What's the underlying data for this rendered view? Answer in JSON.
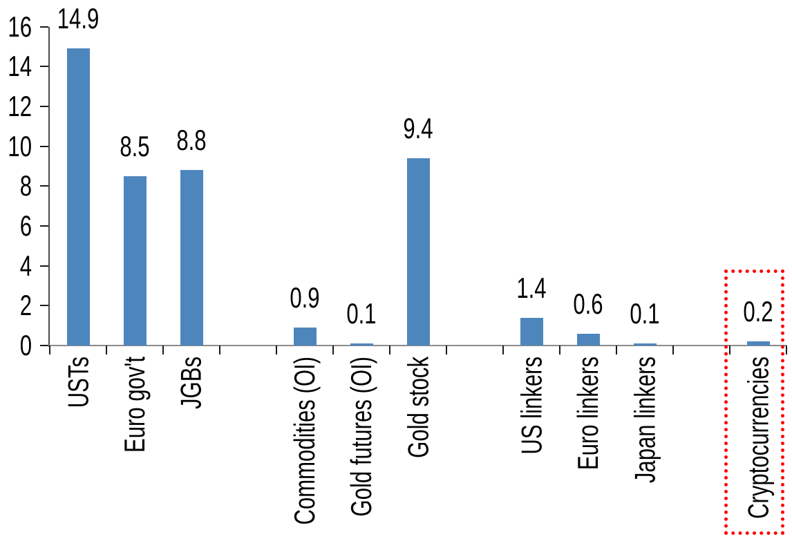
{
  "chart_data": {
    "type": "bar",
    "title": "",
    "xlabel": "",
    "ylabel": "",
    "ylim": [
      0,
      16
    ],
    "y_ticks": [
      0,
      2,
      4,
      6,
      8,
      10,
      12,
      14,
      16
    ],
    "grid": false,
    "legend": false,
    "bar_color": "#4D86BD",
    "categories": [
      "USTs",
      "Euro gov't",
      "JGBs",
      "Commodities (OI)",
      "Gold futures (OI)",
      "Gold stock",
      "US linkers",
      "Euro linkers",
      "Japan linkers",
      "Cryptocurrencies"
    ],
    "values": [
      14.9,
      8.5,
      8.8,
      0.9,
      0.1,
      9.4,
      1.4,
      0.6,
      0.1,
      0.2
    ],
    "value_labels": [
      "14.9",
      "8.5",
      "8.8",
      "0.9",
      "0.1",
      "9.4",
      "1.4",
      "0.6",
      "0.1",
      "0.2"
    ],
    "group_gaps_after": [
      2,
      5,
      8
    ],
    "groups": [
      {
        "categories": [
          "USTs",
          "Euro gov't",
          "JGBs"
        ],
        "values": [
          14.9,
          8.5,
          8.8
        ]
      },
      {
        "categories": [
          "Commodities (OI)",
          "Gold futures (OI)",
          "Gold stock"
        ],
        "values": [
          0.9,
          0.1,
          9.4
        ]
      },
      {
        "categories": [
          "US linkers",
          "Euro linkers",
          "Japan linkers"
        ],
        "values": [
          1.4,
          0.6,
          0.1
        ]
      },
      {
        "categories": [
          "Cryptocurrencies"
        ],
        "values": [
          0.2
        ]
      }
    ],
    "highlight": {
      "category": "Cryptocurrencies",
      "shape": "dotted-rectangle",
      "color": "#FF0000"
    }
  }
}
